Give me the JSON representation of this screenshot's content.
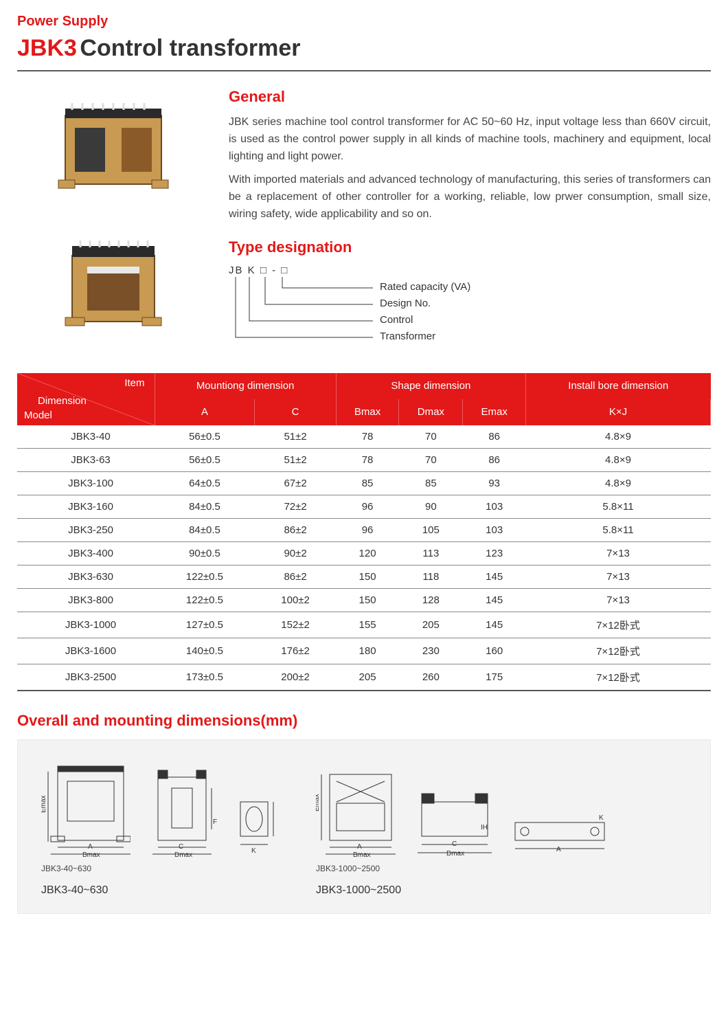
{
  "header": {
    "category": "Power Supply",
    "model": "JBK3",
    "name": "Control transformer"
  },
  "general": {
    "heading": "General",
    "para1": "JBK series machine tool control transformer for AC 50~60 Hz, input voltage less than 660V circuit, is used as the control power supply in all kinds of machine tools, machinery and equipment, local lighting and light power.",
    "para2": "With imported materials and advanced technology of manufacturing, this series of transformers can be a replacement of other controller for a working, reliable, low prwer consumption, small size, wiring safety, wide applicability and so on."
  },
  "type": {
    "heading": "Type designation",
    "code": "JB  K  □ - □",
    "labels": {
      "l1": "Rated capacity (VA)",
      "l2": "Design No.",
      "l3": "Control",
      "l4": "Transformer"
    }
  },
  "table": {
    "corner": {
      "item": "Item",
      "dimension": "Dimension",
      "model": "Model"
    },
    "group_headers": {
      "mounting": "Mountiong dimension",
      "shape": "Shape dimension",
      "install": "Install bore dimension"
    },
    "sub_headers": {
      "a": "A",
      "c": "C",
      "bmax": "Bmax",
      "dmax": "Dmax",
      "emax": "Emax",
      "kj": "K×J"
    },
    "rows": [
      {
        "model": "JBK3-40",
        "a": "56±0.5",
        "c": "51±2",
        "bmax": "78",
        "dmax": "70",
        "emax": "86",
        "kj": "4.8×9"
      },
      {
        "model": "JBK3-63",
        "a": "56±0.5",
        "c": "51±2",
        "bmax": "78",
        "dmax": "70",
        "emax": "86",
        "kj": "4.8×9"
      },
      {
        "model": "JBK3-100",
        "a": "64±0.5",
        "c": "67±2",
        "bmax": "85",
        "dmax": "85",
        "emax": "93",
        "kj": "4.8×9"
      },
      {
        "model": "JBK3-160",
        "a": "84±0.5",
        "c": "72±2",
        "bmax": "96",
        "dmax": "90",
        "emax": "103",
        "kj": "5.8×11"
      },
      {
        "model": "JBK3-250",
        "a": "84±0.5",
        "c": "86±2",
        "bmax": "96",
        "dmax": "105",
        "emax": "103",
        "kj": "5.8×11"
      },
      {
        "model": "JBK3-400",
        "a": "90±0.5",
        "c": "90±2",
        "bmax": "120",
        "dmax": "113",
        "emax": "123",
        "kj": "7×13"
      },
      {
        "model": "JBK3-630",
        "a": "122±0.5",
        "c": "86±2",
        "bmax": "150",
        "dmax": "118",
        "emax": "145",
        "kj": "7×13"
      },
      {
        "model": "JBK3-800",
        "a": "122±0.5",
        "c": "100±2",
        "bmax": "150",
        "dmax": "128",
        "emax": "145",
        "kj": "7×13"
      },
      {
        "model": "JBK3-1000",
        "a": "127±0.5",
        "c": "152±2",
        "bmax": "155",
        "dmax": "205",
        "emax": "145",
        "kj": "7×12卧式"
      },
      {
        "model": "JBK3-1600",
        "a": "140±0.5",
        "c": "176±2",
        "bmax": "180",
        "dmax": "230",
        "emax": "160",
        "kj": "7×12卧式"
      },
      {
        "model": "JBK3-2500",
        "a": "173±0.5",
        "c": "200±2",
        "bmax": "205",
        "dmax": "260",
        "emax": "175",
        "kj": "7×12卧式"
      }
    ]
  },
  "dimensions": {
    "heading": "Overall and mounting dimensions(mm)",
    "group1": {
      "small_caption": "JBK3-40~630",
      "caption": "JBK3-40~630",
      "labels": {
        "a": "A",
        "bmax": "Bmax",
        "c": "C",
        "dmax": "Dmax",
        "emax": "Emax",
        "k": "K",
        "f": "F"
      }
    },
    "group2": {
      "small_caption": "JBK3-1000~2500",
      "caption": "JBK3-1000~2500",
      "labels": {
        "a": "A",
        "bmax": "Bmax",
        "c": "C",
        "dmax": "Dmax",
        "emax": "Emax",
        "k": "K",
        "ih": "IH"
      }
    }
  },
  "colors": {
    "accent": "#e31818",
    "text": "#333333",
    "table_header_bg": "#e31818",
    "table_header_border": "#f05a5a",
    "row_border": "#888888",
    "panel_bg": "#f3f3f4"
  }
}
